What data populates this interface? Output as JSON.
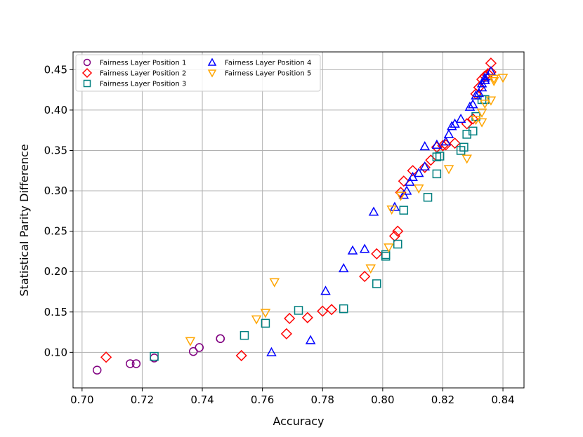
{
  "chart_data": {
    "type": "scatter",
    "title": "",
    "xlabel": "Accuracy",
    "ylabel": "Statistical Parity Difference",
    "xlim": [
      0.697,
      0.847
    ],
    "ylim": [
      0.056,
      0.472
    ],
    "xticks": [
      0.7,
      0.72,
      0.74,
      0.76,
      0.78,
      0.8,
      0.82,
      0.84
    ],
    "yticks": [
      0.1,
      0.15,
      0.2,
      0.25,
      0.3,
      0.35,
      0.4,
      0.45
    ],
    "grid": true,
    "legend_position": "top-left",
    "series": [
      {
        "name": "Fairness Layer Position 1",
        "marker": "circle",
        "color": "#800080",
        "points": [
          [
            0.705,
            0.078
          ],
          [
            0.716,
            0.086
          ],
          [
            0.718,
            0.086
          ],
          [
            0.724,
            0.093
          ],
          [
            0.737,
            0.101
          ],
          [
            0.739,
            0.106
          ],
          [
            0.746,
            0.117
          ],
          [
            0.746,
            0.117
          ]
        ]
      },
      {
        "name": "Fairness Layer Position 2",
        "marker": "diamond",
        "color": "#ff0000",
        "points": [
          [
            0.708,
            0.094
          ],
          [
            0.753,
            0.096
          ],
          [
            0.768,
            0.123
          ],
          [
            0.769,
            0.142
          ],
          [
            0.775,
            0.143
          ],
          [
            0.78,
            0.151
          ],
          [
            0.783,
            0.153
          ],
          [
            0.794,
            0.194
          ],
          [
            0.798,
            0.222
          ],
          [
            0.804,
            0.244
          ],
          [
            0.805,
            0.25
          ],
          [
            0.806,
            0.298
          ],
          [
            0.807,
            0.312
          ],
          [
            0.81,
            0.325
          ],
          [
            0.814,
            0.329
          ],
          [
            0.816,
            0.338
          ],
          [
            0.818,
            0.354
          ],
          [
            0.82,
            0.356
          ],
          [
            0.821,
            0.357
          ],
          [
            0.824,
            0.359
          ],
          [
            0.828,
            0.383
          ],
          [
            0.83,
            0.389
          ],
          [
            0.831,
            0.42
          ],
          [
            0.832,
            0.428
          ],
          [
            0.833,
            0.438
          ],
          [
            0.834,
            0.442
          ],
          [
            0.835,
            0.445
          ],
          [
            0.836,
            0.447
          ],
          [
            0.836,
            0.458
          ]
        ]
      },
      {
        "name": "Fairness Layer Position 3",
        "marker": "square",
        "color": "#008080",
        "points": [
          [
            0.724,
            0.095
          ],
          [
            0.754,
            0.121
          ],
          [
            0.761,
            0.136
          ],
          [
            0.772,
            0.152
          ],
          [
            0.787,
            0.154
          ],
          [
            0.798,
            0.185
          ],
          [
            0.801,
            0.219
          ],
          [
            0.801,
            0.221
          ],
          [
            0.805,
            0.234
          ],
          [
            0.807,
            0.276
          ],
          [
            0.815,
            0.292
          ],
          [
            0.818,
            0.321
          ],
          [
            0.818,
            0.342
          ],
          [
            0.819,
            0.343
          ],
          [
            0.826,
            0.35
          ],
          [
            0.827,
            0.354
          ],
          [
            0.828,
            0.37
          ],
          [
            0.83,
            0.374
          ],
          [
            0.831,
            0.392
          ],
          [
            0.833,
            0.413
          ],
          [
            0.834,
            0.413
          ]
        ]
      },
      {
        "name": "Fairness Layer Position 4",
        "marker": "triangle-up",
        "color": "#0000ff",
        "points": [
          [
            0.763,
            0.1
          ],
          [
            0.776,
            0.115
          ],
          [
            0.781,
            0.176
          ],
          [
            0.787,
            0.204
          ],
          [
            0.79,
            0.226
          ],
          [
            0.794,
            0.228
          ],
          [
            0.797,
            0.274
          ],
          [
            0.804,
            0.28
          ],
          [
            0.807,
            0.295
          ],
          [
            0.808,
            0.3
          ],
          [
            0.809,
            0.311
          ],
          [
            0.81,
            0.317
          ],
          [
            0.812,
            0.322
          ],
          [
            0.814,
            0.33
          ],
          [
            0.814,
            0.355
          ],
          [
            0.818,
            0.357
          ],
          [
            0.821,
            0.361
          ],
          [
            0.822,
            0.37
          ],
          [
            0.823,
            0.38
          ],
          [
            0.824,
            0.383
          ],
          [
            0.826,
            0.389
          ],
          [
            0.829,
            0.404
          ],
          [
            0.83,
            0.407
          ],
          [
            0.831,
            0.418
          ],
          [
            0.832,
            0.421
          ],
          [
            0.833,
            0.428
          ],
          [
            0.833,
            0.433
          ],
          [
            0.834,
            0.437
          ],
          [
            0.834,
            0.44
          ],
          [
            0.835,
            0.442
          ],
          [
            0.836,
            0.448
          ]
        ]
      },
      {
        "name": "Fairness Layer Position 5",
        "marker": "triangle-down",
        "color": "#ffa500",
        "points": [
          [
            0.736,
            0.114
          ],
          [
            0.758,
            0.141
          ],
          [
            0.761,
            0.149
          ],
          [
            0.764,
            0.187
          ],
          [
            0.796,
            0.204
          ],
          [
            0.802,
            0.23
          ],
          [
            0.803,
            0.277
          ],
          [
            0.806,
            0.294
          ],
          [
            0.812,
            0.303
          ],
          [
            0.822,
            0.327
          ],
          [
            0.828,
            0.34
          ],
          [
            0.831,
            0.388
          ],
          [
            0.833,
            0.385
          ],
          [
            0.833,
            0.397
          ],
          [
            0.834,
            0.408
          ],
          [
            0.836,
            0.412
          ],
          [
            0.837,
            0.436
          ],
          [
            0.837,
            0.439
          ],
          [
            0.84,
            0.44
          ]
        ]
      }
    ]
  }
}
